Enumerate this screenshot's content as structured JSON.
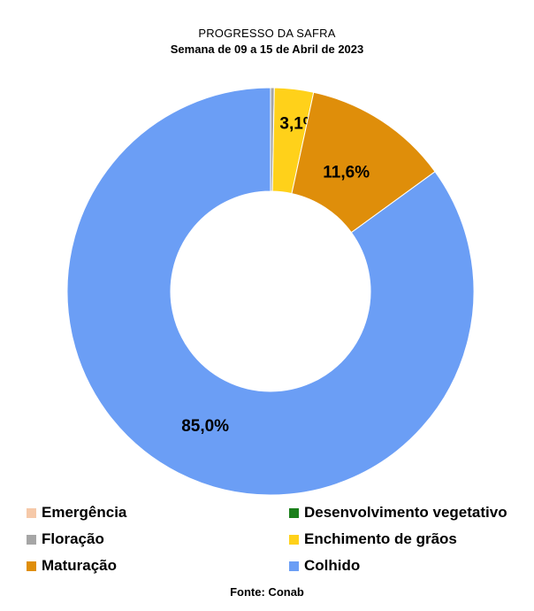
{
  "chart_data": {
    "type": "pie",
    "title": "PROGRESSO DA SAFRA",
    "subtitle": "Semana de 09 a 15 de Abril de 2023",
    "source": "Fonte: Conab",
    "legend_position": "bottom",
    "categories": [
      "Emergência",
      "Desenvolvimento vegetativo",
      "Floração",
      "Enchimento de grãos",
      "Maturação",
      "Colhido"
    ],
    "values": [
      0,
      0,
      0.3,
      3.1,
      11.6,
      85.0
    ],
    "data_labels": [
      "",
      "",
      "",
      "3,1%",
      "11,6%",
      "85,0%"
    ],
    "colors": [
      "#f6c9a9",
      "#1a7f1a",
      "#a6a6a6",
      "#ffd11a",
      "#df8e0a",
      "#6b9ef5"
    ]
  }
}
